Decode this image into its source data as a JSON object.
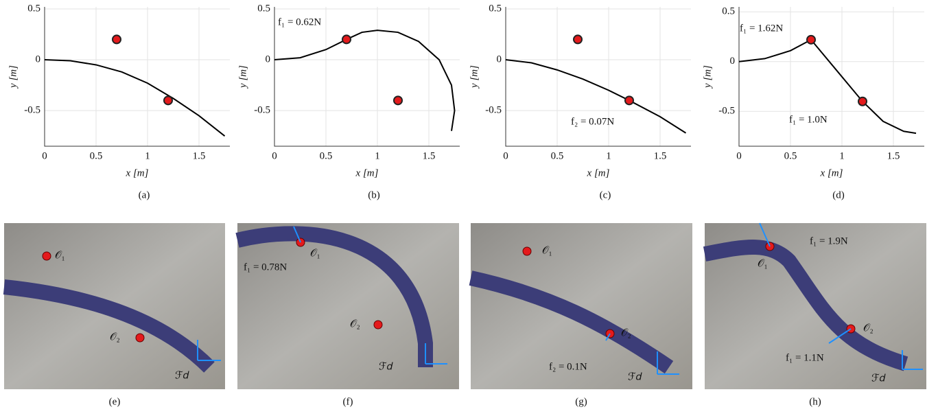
{
  "chart_data": [
    {
      "type": "line",
      "caption": "(a)",
      "xlabel": "x [m]",
      "ylabel": "y [m]",
      "xlim": [
        0,
        1.8
      ],
      "ylim": [
        -0.85,
        0.52
      ],
      "xticks": [
        0,
        0.5,
        1,
        1.5
      ],
      "yticks": [
        -0.5,
        0,
        0.5
      ],
      "grid": true,
      "color": "#000000",
      "x": [
        0,
        0.25,
        0.5,
        0.75,
        1,
        1.25,
        1.5,
        1.75
      ],
      "values": [
        0,
        -0.01,
        -0.05,
        -0.12,
        -0.23,
        -0.38,
        -0.55,
        -0.75
      ],
      "points": {
        "x": [
          0.7,
          1.2
        ],
        "y": [
          0.2,
          -0.4
        ]
      },
      "annotations": []
    },
    {
      "type": "line",
      "caption": "(b)",
      "xlabel": "x [m]",
      "ylabel": "y [m]",
      "xlim": [
        0,
        1.8
      ],
      "ylim": [
        -0.85,
        0.52
      ],
      "xticks": [
        0,
        0.5,
        1,
        1.5
      ],
      "yticks": [
        -0.5,
        0,
        0.5
      ],
      "grid": true,
      "color": "#000000",
      "x": [
        0,
        0.25,
        0.5,
        0.7,
        0.85,
        1.0,
        1.2,
        1.4,
        1.6,
        1.72,
        1.75,
        1.72
      ],
      "values": [
        0,
        0.02,
        0.1,
        0.2,
        0.27,
        0.29,
        0.27,
        0.18,
        0.0,
        -0.25,
        -0.5,
        -0.7
      ],
      "points": {
        "x": [
          0.7,
          1.2
        ],
        "y": [
          0.2,
          -0.4
        ]
      },
      "annotations": [
        "f₁ = 0.62N"
      ]
    },
    {
      "type": "line",
      "caption": "(c)",
      "xlabel": "x [m]",
      "ylabel": "y [m]",
      "xlim": [
        0,
        1.8
      ],
      "ylim": [
        -0.85,
        0.52
      ],
      "xticks": [
        0,
        0.5,
        1,
        1.5
      ],
      "yticks": [
        -0.5,
        0,
        0.5
      ],
      "grid": true,
      "color": "#000000",
      "x": [
        0,
        0.25,
        0.5,
        0.75,
        1,
        1.2,
        1.5,
        1.75
      ],
      "values": [
        0,
        -0.03,
        -0.1,
        -0.19,
        -0.3,
        -0.4,
        -0.56,
        -0.72
      ],
      "points": {
        "x": [
          0.7,
          1.2
        ],
        "y": [
          0.2,
          -0.4
        ]
      },
      "annotations": [
        "f₂ = 0.07N"
      ]
    },
    {
      "type": "line",
      "caption": "(d)",
      "xlabel": "x [m]",
      "ylabel": "y [m]",
      "xlim": [
        0,
        1.8
      ],
      "ylim": [
        -0.85,
        0.55
      ],
      "xticks": [
        0,
        0.5,
        1,
        1.5
      ],
      "yticks": [
        -0.5,
        0,
        0.5
      ],
      "grid": true,
      "color": "#000000",
      "x": [
        0,
        0.25,
        0.5,
        0.7,
        0.95,
        1.2,
        1.4,
        1.6,
        1.72
      ],
      "values": [
        0,
        0.03,
        0.11,
        0.22,
        -0.09,
        -0.4,
        -0.6,
        -0.7,
        -0.72
      ],
      "points": {
        "x": [
          0.7,
          1.2
        ],
        "y": [
          0.22,
          -0.4
        ]
      },
      "annotations": [
        "f₁ = 1.62N",
        "f₁ = 1.0N"
      ]
    }
  ],
  "photos": [
    {
      "caption": "(e)",
      "labels": [
        "𝒪₁",
        "𝒪₂",
        "ℱ𝑑"
      ]
    },
    {
      "caption": "(f)",
      "labels": [
        "𝒪₁",
        "𝒪₂",
        "ℱ𝑑",
        "f₁ = 0.78N"
      ]
    },
    {
      "caption": "(g)",
      "labels": [
        "𝒪₁",
        "𝒪₂",
        "ℱ𝑑",
        "f₂ = 0.1N"
      ]
    },
    {
      "caption": "(h)",
      "labels": [
        "𝒪₁",
        "𝒪₂",
        "ℱ𝑑",
        "f₁ = 1.9N",
        "f₁ = 1.1N"
      ]
    }
  ]
}
